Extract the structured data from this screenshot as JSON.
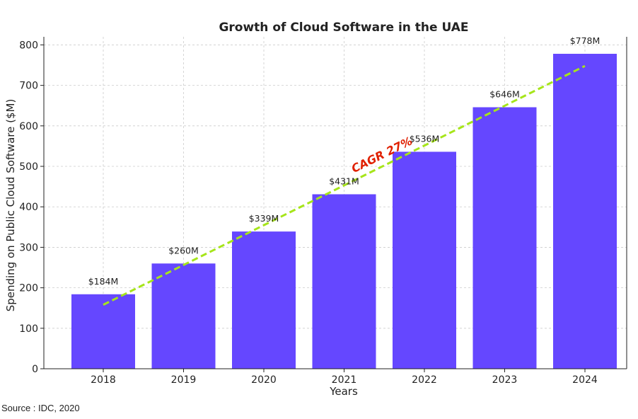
{
  "chart_data": {
    "type": "bar",
    "title": "Growth of Cloud Software in the UAE",
    "xlabel": "Years",
    "ylabel": "Spending on Public Cloud Software ($M)",
    "categories": [
      "2018",
      "2019",
      "2020",
      "2021",
      "2022",
      "2023",
      "2024"
    ],
    "values": [
      184,
      260,
      339,
      431,
      536,
      646,
      778
    ],
    "data_labels": [
      "$184M",
      "$260M",
      "$339M",
      "$431M",
      "$536M",
      "$646M",
      "$778M"
    ],
    "ylim": [
      0,
      820
    ],
    "yticks": [
      0,
      100,
      200,
      300,
      400,
      500,
      600,
      700,
      800
    ],
    "grid": true,
    "bar_color": "#6547ff",
    "trendline": {
      "color": "#a6e51a",
      "style": "dashed",
      "start": {
        "x": "2018",
        "y": 158
      },
      "end": {
        "x": "2024",
        "y": 748
      }
    },
    "annotation": {
      "text": "CAGR 27%",
      "color": "#e02000"
    }
  },
  "footer": {
    "source": "Source : IDC, 2020"
  }
}
